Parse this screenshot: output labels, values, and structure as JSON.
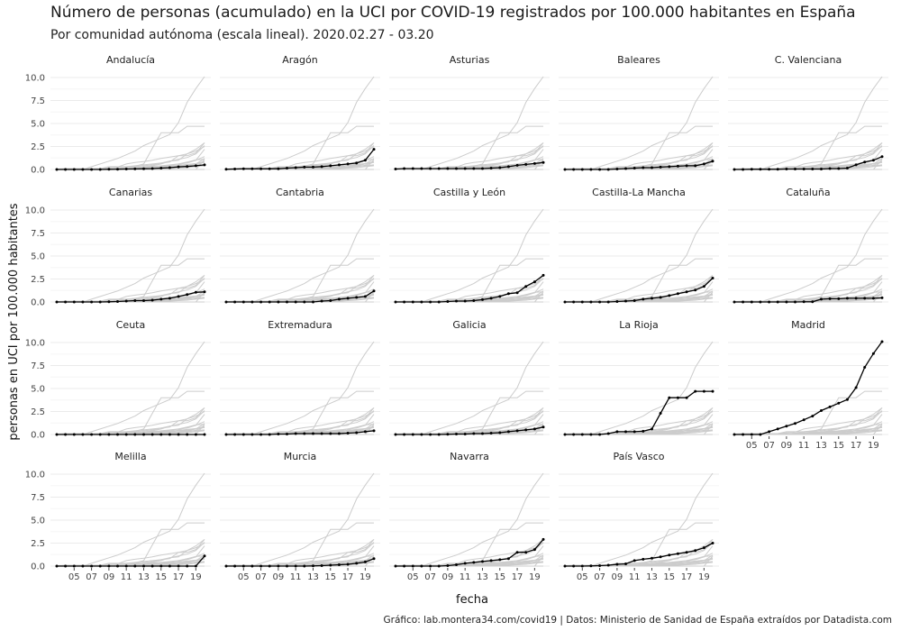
{
  "title": "Número de personas (acumulado) en la UCI por COVID-19 registrados por 100.000 habitantes en España",
  "subtitle": "Por comunidad autónoma (escala lineal). 2020.02.27 - 03.20",
  "caption": "Gráfico: lab.montera34.com/covid19 | Datos: Ministerio de Sanidad de España extraídos por Datadista.com",
  "chart_data": {
    "type": "line",
    "facets": true,
    "xlabel": "fecha",
    "ylabel": "personas en UCI por 100.000 habitantes",
    "x": [
      "03",
      "04",
      "05",
      "06",
      "07",
      "08",
      "09",
      "10",
      "11",
      "12",
      "13",
      "14",
      "15",
      "16",
      "17",
      "18",
      "19",
      "20"
    ],
    "x_ticks": [
      "05",
      "07",
      "09",
      "11",
      "13",
      "15",
      "17",
      "19"
    ],
    "ylim": [
      0,
      10
    ],
    "y_ticks": [
      "0.0",
      "2.5",
      "5.0",
      "7.5",
      "10.0"
    ],
    "highlight_color": "#000000",
    "background_color": "#cccccc",
    "series": [
      {
        "name": "Andalucía",
        "values": [
          0,
          0,
          0,
          0,
          0,
          0,
          0.02,
          0.03,
          0.05,
          0.06,
          0.08,
          0.1,
          0.15,
          0.2,
          0.28,
          0.32,
          0.4,
          0.5
        ]
      },
      {
        "name": "Aragón",
        "values": [
          0.02,
          0.05,
          0.08,
          0.08,
          0.08,
          0.08,
          0.08,
          0.15,
          0.2,
          0.25,
          0.25,
          0.3,
          0.4,
          0.5,
          0.6,
          0.7,
          1.0,
          2.2
        ]
      },
      {
        "name": "Asturias",
        "values": [
          0.05,
          0.1,
          0.1,
          0.1,
          0.1,
          0.1,
          0.1,
          0.1,
          0.1,
          0.1,
          0.1,
          0.15,
          0.2,
          0.3,
          0.45,
          0.55,
          0.65,
          0.75
        ]
      },
      {
        "name": "Baleares",
        "values": [
          0,
          0,
          0,
          0,
          0,
          0,
          0.05,
          0.1,
          0.15,
          0.2,
          0.2,
          0.25,
          0.3,
          0.35,
          0.4,
          0.4,
          0.6,
          0.9
        ]
      },
      {
        "name": "C. Valenciana",
        "values": [
          0,
          0,
          0.02,
          0.02,
          0.02,
          0.02,
          0.05,
          0.05,
          0.05,
          0.05,
          0.05,
          0.1,
          0.1,
          0.15,
          0.5,
          0.8,
          1.0,
          1.4
        ]
      },
      {
        "name": "Canarias",
        "values": [
          0,
          0,
          0,
          0,
          0,
          0,
          0.02,
          0.05,
          0.1,
          0.15,
          0.15,
          0.2,
          0.3,
          0.4,
          0.6,
          0.8,
          1.05,
          1.1
        ]
      },
      {
        "name": "Cantabria",
        "values": [
          0,
          0,
          0,
          0,
          0,
          0,
          0,
          0,
          0,
          0,
          0,
          0.1,
          0.15,
          0.3,
          0.4,
          0.5,
          0.6,
          1.2
        ]
      },
      {
        "name": "Castilla y León",
        "values": [
          0,
          0,
          0,
          0,
          0,
          0,
          0.05,
          0.1,
          0.1,
          0.15,
          0.25,
          0.4,
          0.6,
          0.9,
          1.0,
          1.7,
          2.2,
          2.9
        ]
      },
      {
        "name": "Castilla-La Mancha",
        "values": [
          0,
          0,
          0,
          0,
          0,
          0,
          0.05,
          0.1,
          0.15,
          0.3,
          0.4,
          0.5,
          0.7,
          0.9,
          1.1,
          1.3,
          1.7,
          2.6
        ]
      },
      {
        "name": "Cataluña",
        "values": [
          0,
          0,
          0,
          0,
          0,
          0,
          0,
          0,
          0.02,
          0.02,
          0.3,
          0.35,
          0.35,
          0.4,
          0.4,
          0.4,
          0.4,
          0.45
        ]
      },
      {
        "name": "Ceuta",
        "values": [
          0,
          0,
          0,
          0,
          0,
          0,
          0,
          0,
          0,
          0,
          0,
          0,
          0,
          0,
          0,
          0,
          0,
          0
        ]
      },
      {
        "name": "Extremadura",
        "values": [
          0,
          0,
          0,
          0,
          0,
          0,
          0.05,
          0.05,
          0.1,
          0.1,
          0.1,
          0.1,
          0.1,
          0.1,
          0.15,
          0.2,
          0.3,
          0.4
        ]
      },
      {
        "name": "Galicia",
        "values": [
          0,
          0,
          0,
          0,
          0,
          0,
          0.02,
          0.05,
          0.05,
          0.1,
          0.1,
          0.15,
          0.2,
          0.3,
          0.4,
          0.5,
          0.6,
          0.8
        ]
      },
      {
        "name": "La Rioja",
        "values": [
          0,
          0,
          0,
          0,
          0,
          0.1,
          0.3,
          0.3,
          0.3,
          0.35,
          0.6,
          2.3,
          4.0,
          4.0,
          4.0,
          4.7,
          4.7,
          4.7
        ]
      },
      {
        "name": "Madrid",
        "values": [
          0,
          0,
          0,
          0,
          0.3,
          0.6,
          0.9,
          1.2,
          1.6,
          2.0,
          2.6,
          3.0,
          3.4,
          3.8,
          5.1,
          7.3,
          8.8,
          10.1
        ]
      },
      {
        "name": "Melilla",
        "values": [
          0,
          0,
          0,
          0,
          0,
          0,
          0,
          0,
          0,
          0,
          0,
          0,
          0,
          0,
          0,
          0,
          0,
          1.1
        ]
      },
      {
        "name": "Murcia",
        "values": [
          0,
          0,
          0,
          0,
          0,
          0,
          0,
          0,
          0,
          0,
          0.02,
          0.05,
          0.1,
          0.15,
          0.2,
          0.3,
          0.45,
          0.8
        ]
      },
      {
        "name": "Navarra",
        "values": [
          0,
          0,
          0,
          0,
          0,
          0,
          0.05,
          0.15,
          0.3,
          0.4,
          0.5,
          0.6,
          0.7,
          0.8,
          1.5,
          1.5,
          1.8,
          2.9
        ]
      },
      {
        "name": "País Vasco",
        "values": [
          0,
          0,
          0,
          0.02,
          0.05,
          0.1,
          0.2,
          0.25,
          0.6,
          0.75,
          0.85,
          1.0,
          1.2,
          1.35,
          1.5,
          1.7,
          2.0,
          2.5
        ]
      }
    ]
  }
}
